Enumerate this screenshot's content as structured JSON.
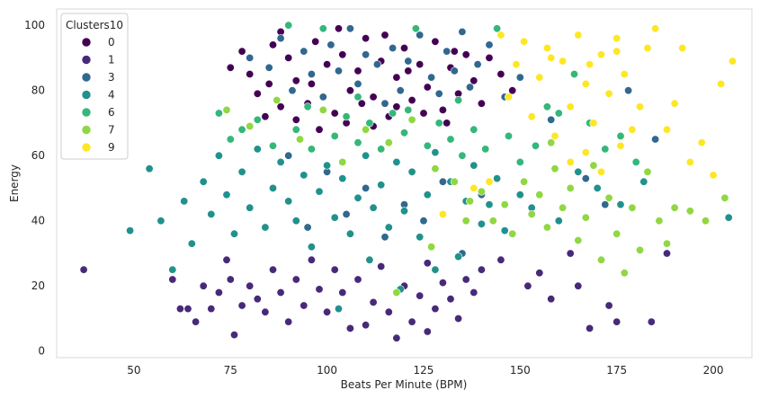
{
  "chart_data": {
    "type": "scatter",
    "xlabel": "Beats Per Minute (BPM)",
    "ylabel": "Energy",
    "xlim": [
      30,
      210
    ],
    "ylim": [
      -2,
      105
    ],
    "xticks": [
      50,
      75,
      100,
      125,
      150,
      175,
      200
    ],
    "yticks": [
      0,
      20,
      40,
      60,
      80,
      100
    ],
    "grid": false,
    "legend": {
      "title": "Clusters10",
      "position": "top-left"
    },
    "series": [
      {
        "name": "0",
        "color": "#440154",
        "points": [
          [
            75,
            87
          ],
          [
            78,
            92
          ],
          [
            80,
            85
          ],
          [
            82,
            79
          ],
          [
            85,
            82
          ],
          [
            86,
            94
          ],
          [
            88,
            75
          ],
          [
            90,
            90
          ],
          [
            92,
            83
          ],
          [
            95,
            76
          ],
          [
            97,
            95
          ],
          [
            100,
            88
          ],
          [
            102,
            73
          ],
          [
            104,
            91
          ],
          [
            106,
            80
          ],
          [
            108,
            86
          ],
          [
            110,
            96
          ],
          [
            112,
            78
          ],
          [
            114,
            89
          ],
          [
            116,
            72
          ],
          [
            118,
            84
          ],
          [
            120,
            93
          ],
          [
            122,
            77
          ],
          [
            124,
            88
          ],
          [
            126,
            81
          ],
          [
            128,
            95
          ],
          [
            130,
            74
          ],
          [
            132,
            87
          ],
          [
            134,
            79
          ],
          [
            136,
            91
          ],
          [
            138,
            83
          ],
          [
            140,
            76
          ],
          [
            142,
            90
          ],
          [
            145,
            85
          ],
          [
            148,
            80
          ],
          [
            92,
            71
          ],
          [
            98,
            68
          ],
          [
            105,
            70
          ],
          [
            112,
            69
          ],
          [
            118,
            75
          ],
          [
            125,
            73
          ],
          [
            131,
            70
          ],
          [
            88,
            98
          ],
          [
            103,
            99
          ],
          [
            115,
            97
          ],
          [
            96,
            82
          ],
          [
            109,
            76
          ],
          [
            121,
            86
          ],
          [
            133,
            92
          ],
          [
            84,
            72
          ]
        ]
      },
      {
        "name": "1",
        "color": "#482979",
        "points": [
          [
            37,
            25
          ],
          [
            60,
            22
          ],
          [
            62,
            13
          ],
          [
            64,
            13
          ],
          [
            66,
            9
          ],
          [
            68,
            20
          ],
          [
            70,
            13
          ],
          [
            72,
            18
          ],
          [
            74,
            28
          ],
          [
            75,
            22
          ],
          [
            76,
            5
          ],
          [
            78,
            14
          ],
          [
            80,
            20
          ],
          [
            82,
            16
          ],
          [
            84,
            12
          ],
          [
            86,
            25
          ],
          [
            88,
            18
          ],
          [
            90,
            9
          ],
          [
            92,
            22
          ],
          [
            94,
            14
          ],
          [
            96,
            28
          ],
          [
            98,
            19
          ],
          [
            100,
            12
          ],
          [
            102,
            25
          ],
          [
            104,
            18
          ],
          [
            106,
            7
          ],
          [
            108,
            22
          ],
          [
            110,
            8
          ],
          [
            112,
            15
          ],
          [
            114,
            26
          ],
          [
            116,
            12
          ],
          [
            118,
            4
          ],
          [
            120,
            20
          ],
          [
            122,
            9
          ],
          [
            124,
            17
          ],
          [
            126,
            27
          ],
          [
            128,
            13
          ],
          [
            130,
            21
          ],
          [
            132,
            16
          ],
          [
            134,
            10
          ],
          [
            136,
            22
          ],
          [
            138,
            18
          ],
          [
            145,
            28
          ],
          [
            155,
            24
          ],
          [
            158,
            16
          ],
          [
            168,
            7
          ],
          [
            173,
            14
          ],
          [
            175,
            9
          ],
          [
            184,
            9
          ],
          [
            188,
            30
          ],
          [
            165,
            20
          ],
          [
            163,
            30
          ],
          [
            152,
            20
          ],
          [
            140,
            25
          ],
          [
            126,
            6
          ]
        ]
      },
      {
        "name": "3",
        "color": "#31688e",
        "points": [
          [
            80,
            90
          ],
          [
            85,
            87
          ],
          [
            88,
            96
          ],
          [
            91,
            80
          ],
          [
            94,
            92
          ],
          [
            96,
            85
          ],
          [
            99,
            78
          ],
          [
            101,
            94
          ],
          [
            103,
            86
          ],
          [
            106,
            99
          ],
          [
            108,
            82
          ],
          [
            110,
            91
          ],
          [
            113,
            88
          ],
          [
            115,
            76
          ],
          [
            117,
            93
          ],
          [
            119,
            80
          ],
          [
            121,
            89
          ],
          [
            124,
            97
          ],
          [
            127,
            84
          ],
          [
            129,
            79
          ],
          [
            131,
            92
          ],
          [
            133,
            86
          ],
          [
            135,
            98
          ],
          [
            137,
            81
          ],
          [
            139,
            88
          ],
          [
            142,
            94
          ],
          [
            146,
            78
          ],
          [
            150,
            84
          ],
          [
            158,
            71
          ],
          [
            167,
            53
          ],
          [
            172,
            45
          ],
          [
            178,
            80
          ],
          [
            185,
            65
          ],
          [
            90,
            60
          ],
          [
            100,
            55
          ],
          [
            110,
            50
          ],
          [
            120,
            45
          ],
          [
            130,
            52
          ],
          [
            140,
            48
          ],
          [
            95,
            38
          ],
          [
            105,
            42
          ],
          [
            115,
            35
          ],
          [
            125,
            40
          ],
          [
            135,
            30
          ]
        ]
      },
      {
        "name": "4",
        "color": "#21918c",
        "points": [
          [
            49,
            37
          ],
          [
            54,
            56
          ],
          [
            57,
            40
          ],
          [
            60,
            25
          ],
          [
            63,
            46
          ],
          [
            65,
            33
          ],
          [
            68,
            52
          ],
          [
            70,
            42
          ],
          [
            72,
            60
          ],
          [
            74,
            48
          ],
          [
            76,
            36
          ],
          [
            78,
            55
          ],
          [
            80,
            44
          ],
          [
            82,
            62
          ],
          [
            84,
            38
          ],
          [
            86,
            50
          ],
          [
            88,
            58
          ],
          [
            90,
            46
          ],
          [
            92,
            40
          ],
          [
            94,
            54
          ],
          [
            96,
            32
          ],
          [
            98,
            49
          ],
          [
            100,
            57
          ],
          [
            102,
            41
          ],
          [
            104,
            53
          ],
          [
            106,
            36
          ],
          [
            108,
            47
          ],
          [
            110,
            60
          ],
          [
            112,
            44
          ],
          [
            114,
            51
          ],
          [
            116,
            38
          ],
          [
            118,
            58
          ],
          [
            120,
            43
          ],
          [
            122,
            55
          ],
          [
            124,
            35
          ],
          [
            126,
            48
          ],
          [
            128,
            61
          ],
          [
            130,
            42
          ],
          [
            132,
            52
          ],
          [
            134,
            29
          ],
          [
            136,
            46
          ],
          [
            138,
            57
          ],
          [
            140,
            39
          ],
          [
            142,
            45
          ],
          [
            144,
            53
          ],
          [
            146,
            37
          ],
          [
            150,
            48
          ],
          [
            153,
            44
          ],
          [
            160,
            40
          ],
          [
            165,
            55
          ],
          [
            170,
            50
          ],
          [
            176,
            45
          ],
          [
            182,
            52
          ],
          [
            204,
            41
          ],
          [
            103,
            13
          ],
          [
            111,
            28
          ],
          [
            119,
            19
          ],
          [
            128,
            25
          ]
        ]
      },
      {
        "name": "6",
        "color": "#35b779",
        "points": [
          [
            72,
            73
          ],
          [
            75,
            65
          ],
          [
            78,
            68
          ],
          [
            82,
            71
          ],
          [
            86,
            63
          ],
          [
            90,
            100
          ],
          [
            92,
            68
          ],
          [
            96,
            62
          ],
          [
            99,
            99
          ],
          [
            102,
            66
          ],
          [
            105,
            72
          ],
          [
            108,
            64
          ],
          [
            111,
            70
          ],
          [
            114,
            62
          ],
          [
            117,
            73
          ],
          [
            120,
            67
          ],
          [
            123,
            99
          ],
          [
            126,
            63
          ],
          [
            129,
            70
          ],
          [
            132,
            65
          ],
          [
            135,
            60
          ],
          [
            138,
            68
          ],
          [
            141,
            62
          ],
          [
            144,
            99
          ],
          [
            147,
            66
          ],
          [
            150,
            58
          ],
          [
            154,
            63
          ],
          [
            157,
            75
          ],
          [
            160,
            73
          ],
          [
            164,
            85
          ],
          [
            168,
            70
          ],
          [
            172,
            62
          ],
          [
            176,
            66
          ],
          [
            180,
            58
          ],
          [
            95,
            75
          ],
          [
            108,
            78
          ],
          [
            121,
            74
          ],
          [
            134,
            77
          ]
        ]
      },
      {
        "name": "7",
        "color": "#90d743",
        "points": [
          [
            74,
            74
          ],
          [
            80,
            69
          ],
          [
            87,
            77
          ],
          [
            93,
            65
          ],
          [
            99,
            74
          ],
          [
            104,
            58
          ],
          [
            110,
            68
          ],
          [
            116,
            64
          ],
          [
            122,
            71
          ],
          [
            128,
            56
          ],
          [
            133,
            52
          ],
          [
            137,
            46
          ],
          [
            140,
            49
          ],
          [
            143,
            40
          ],
          [
            146,
            45
          ],
          [
            148,
            36
          ],
          [
            151,
            52
          ],
          [
            153,
            42
          ],
          [
            155,
            48
          ],
          [
            157,
            38
          ],
          [
            159,
            56
          ],
          [
            161,
            44
          ],
          [
            163,
            50
          ],
          [
            165,
            34
          ],
          [
            167,
            41
          ],
          [
            169,
            57
          ],
          [
            171,
            28
          ],
          [
            173,
            47
          ],
          [
            175,
            36
          ],
          [
            177,
            24
          ],
          [
            179,
            44
          ],
          [
            181,
            31
          ],
          [
            183,
            55
          ],
          [
            186,
            40
          ],
          [
            188,
            33
          ],
          [
            190,
            44
          ],
          [
            194,
            43
          ],
          [
            198,
            40
          ],
          [
            203,
            47
          ],
          [
            118,
            18
          ],
          [
            127,
            32
          ],
          [
            136,
            40
          ],
          [
            158,
            64
          ]
        ]
      },
      {
        "name": "9",
        "color": "#fde725",
        "points": [
          [
            130,
            42
          ],
          [
            138,
            50
          ],
          [
            142,
            52
          ],
          [
            145,
            97
          ],
          [
            147,
            78
          ],
          [
            149,
            88
          ],
          [
            151,
            95
          ],
          [
            153,
            72
          ],
          [
            155,
            84
          ],
          [
            157,
            93
          ],
          [
            159,
            66
          ],
          [
            161,
            89
          ],
          [
            163,
            75
          ],
          [
            165,
            97
          ],
          [
            167,
            82
          ],
          [
            169,
            70
          ],
          [
            171,
            91
          ],
          [
            173,
            79
          ],
          [
            175,
            96
          ],
          [
            177,
            85
          ],
          [
            179,
            68
          ],
          [
            181,
            75
          ],
          [
            183,
            93
          ],
          [
            185,
            99
          ],
          [
            188,
            68
          ],
          [
            190,
            76
          ],
          [
            192,
            93
          ],
          [
            194,
            58
          ],
          [
            197,
            64
          ],
          [
            200,
            54
          ],
          [
            202,
            82
          ],
          [
            205,
            89
          ],
          [
            167,
            61
          ],
          [
            171,
            55
          ],
          [
            163,
            58
          ],
          [
            176,
            63
          ],
          [
            158,
            90
          ],
          [
            168,
            88
          ],
          [
            175,
            92
          ]
        ]
      }
    ]
  }
}
